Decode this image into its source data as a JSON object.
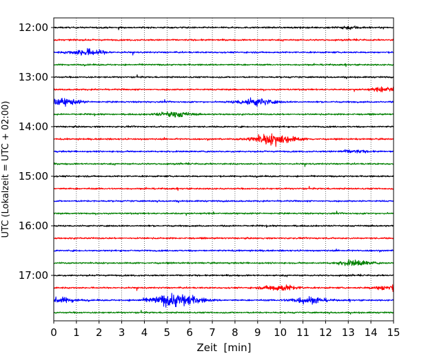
{
  "chart_data": {
    "type": "line",
    "subtype": "helicorder",
    "title": "",
    "xlabel": "Zeit  [min]",
    "ylabel": "UTC (Lokalzeit = UTC + 02:00)",
    "xlim": [
      0,
      15
    ],
    "x_ticks": [
      "0",
      "1",
      "2",
      "3",
      "4",
      "5",
      "6",
      "7",
      "8",
      "9",
      "10",
      "11",
      "12",
      "13",
      "14",
      "15"
    ],
    "y_ticks": [
      "12:00",
      "13:00",
      "14:00",
      "15:00",
      "16:00",
      "17:00"
    ],
    "grid": "vertical dotted lines at each minute",
    "trace_colors": [
      "#000000",
      "#ff0000",
      "#0000ff",
      "#008000"
    ],
    "trace_start_times": [
      "12:00",
      "12:15",
      "12:30",
      "12:45",
      "13:00",
      "13:15",
      "13:30",
      "13:45",
      "14:00",
      "14:15",
      "14:30",
      "14:45",
      "15:00",
      "15:15",
      "15:30",
      "15:45",
      "16:00",
      "16:15",
      "16:30",
      "16:45",
      "17:00",
      "17:15",
      "17:30",
      "17:45"
    ],
    "events": [
      {
        "trace_start": "12:00",
        "minute": 13.0,
        "amplitude": 0.3
      },
      {
        "trace_start": "12:30",
        "minute": 1.5,
        "amplitude": 0.7
      },
      {
        "trace_start": "13:15",
        "minute": 14.8,
        "amplitude": 0.55
      },
      {
        "trace_start": "13:30",
        "minute": 0.4,
        "amplitude": 0.7
      },
      {
        "trace_start": "13:30",
        "minute": 8.9,
        "amplitude": 0.8
      },
      {
        "trace_start": "13:45",
        "minute": 5.3,
        "amplitude": 0.6
      },
      {
        "trace_start": "14:15",
        "minute": 9.7,
        "amplitude": 1.2
      },
      {
        "trace_start": "14:30",
        "minute": 13.2,
        "amplitude": 0.3
      },
      {
        "trace_start": "16:45",
        "minute": 13.3,
        "amplitude": 0.6
      },
      {
        "trace_start": "17:15",
        "minute": 10.0,
        "amplitude": 0.65
      },
      {
        "trace_start": "17:15",
        "minute": 14.8,
        "amplitude": 0.55
      },
      {
        "trace_start": "17:30",
        "minute": 0.3,
        "amplitude": 0.55
      },
      {
        "trace_start": "17:30",
        "minute": 5.4,
        "amplitude": 1.5
      },
      {
        "trace_start": "17:30",
        "minute": 11.2,
        "amplitude": 0.75
      }
    ]
  }
}
